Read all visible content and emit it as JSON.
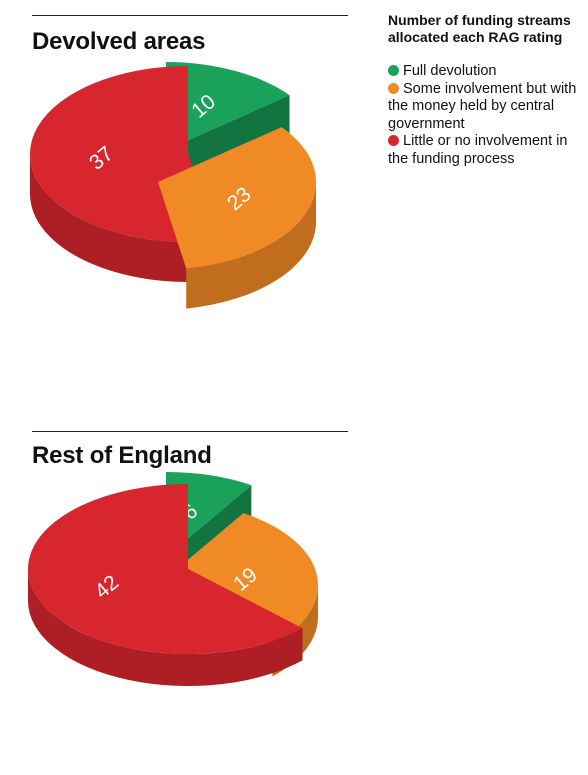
{
  "legend": {
    "title": "Number of funding streams allocated each RAG rating",
    "items": [
      {
        "key": "green",
        "label": "Full devolution",
        "color": "#1aa15a"
      },
      {
        "key": "amber",
        "label": "Some involvement but with the money held by central government",
        "color": "#f08a24"
      },
      {
        "key": "red",
        "label": "Little or no involvement in the funding process",
        "color": "#d8262e"
      }
    ]
  },
  "chart_data": [
    {
      "type": "pie",
      "title": "Devolved areas",
      "style": "3d-exploded",
      "categories": [
        "Full devolution",
        "Some involvement but with the money held by central government",
        "Little or no involvement in the funding process"
      ],
      "values": [
        10,
        23,
        37
      ],
      "colors": [
        "#1aa15a",
        "#f08a24",
        "#d8262e"
      ]
    },
    {
      "type": "pie",
      "title": "Rest of England",
      "style": "3d-exploded",
      "categories": [
        "Full devolution",
        "Some involvement but with the money held by central government",
        "Little or no involvement in the funding process"
      ],
      "values": [
        6,
        19,
        42
      ],
      "colors": [
        "#1aa15a",
        "#f08a24",
        "#d8262e"
      ]
    }
  ]
}
